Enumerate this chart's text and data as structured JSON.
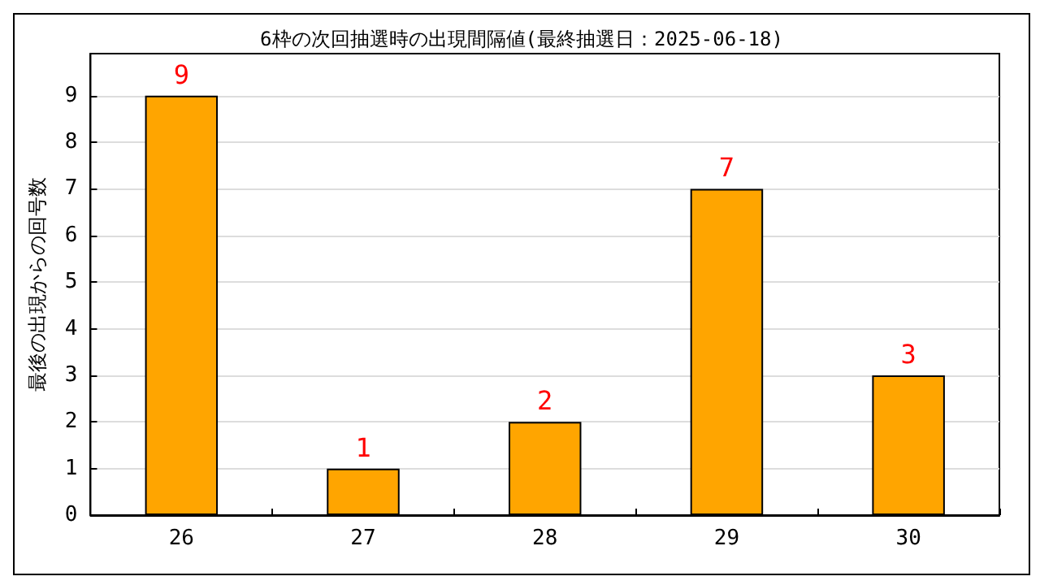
{
  "chart_data": {
    "type": "bar",
    "title": "6枠の次回抽選時の出現間隔値(最終抽選日：2025-06-18)",
    "ylabel": "最後の出現からの回号数",
    "categories": [
      "26",
      "27",
      "28",
      "29",
      "30"
    ],
    "values": [
      9,
      1,
      2,
      7,
      3
    ],
    "color": "#ffa500",
    "ylim": [
      0,
      9.9
    ],
    "yticks": [
      0,
      1,
      2,
      3,
      4,
      5,
      6,
      7,
      8,
      9
    ],
    "grid": "y",
    "data_labels": true
  }
}
